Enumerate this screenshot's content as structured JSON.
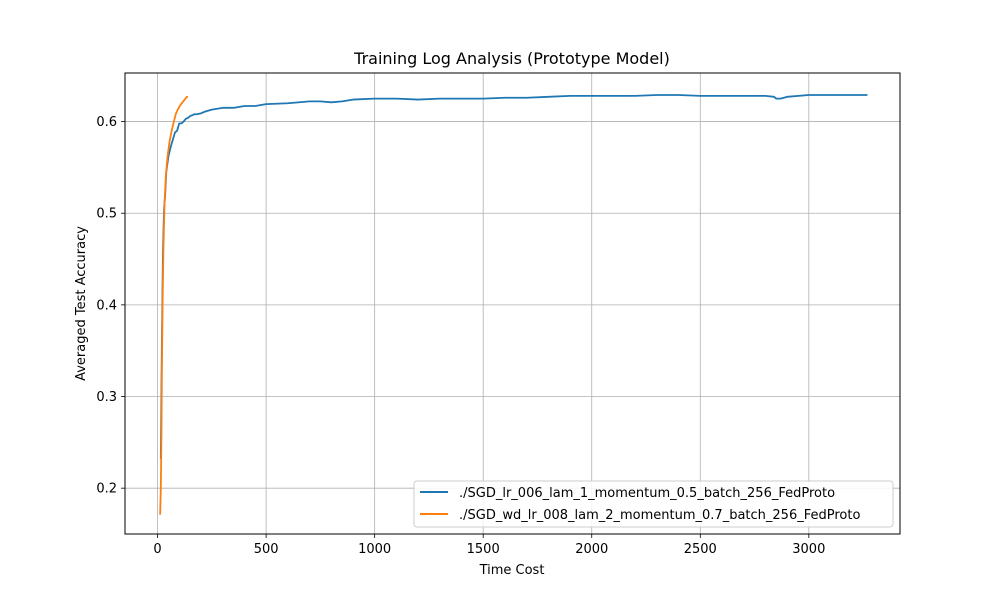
{
  "chart_data": {
    "type": "line",
    "title": "Training Log Analysis (Prototype Model)",
    "xlabel": "Time Cost",
    "ylabel": "Averaged Test Accuracy",
    "xlim": [
      -150,
      3420
    ],
    "ylim": [
      0.15,
      0.653
    ],
    "xticks": [
      0,
      500,
      1000,
      1500,
      2000,
      2500,
      3000
    ],
    "yticks": [
      0.2,
      0.3,
      0.4,
      0.5,
      0.6
    ],
    "xtick_labels": [
      "0",
      "500",
      "1000",
      "1500",
      "2000",
      "2500",
      "3000"
    ],
    "ytick_labels": [
      "0.2",
      "0.3",
      "0.4",
      "0.5",
      "0.6"
    ],
    "grid": true,
    "legend_position": "lower-right",
    "series": [
      {
        "name": "./SGD_lr_006_lam_1_momentum_0.5_batch_256_FedProto",
        "color": "#1f77b4",
        "x": [
          15,
          20,
          25,
          30,
          35,
          40,
          50,
          60,
          70,
          80,
          90,
          100,
          110,
          120,
          130,
          140,
          150,
          160,
          170,
          180,
          200,
          220,
          250,
          300,
          350,
          400,
          450,
          500,
          600,
          700,
          750,
          800,
          850,
          900,
          1000,
          1100,
          1200,
          1300,
          1400,
          1500,
          1600,
          1700,
          1800,
          1900,
          2000,
          2100,
          2200,
          2300,
          2400,
          2500,
          2600,
          2700,
          2800,
          2840,
          2850,
          2870,
          2900,
          3000,
          3100,
          3200,
          3270
        ],
        "y": [
          0.232,
          0.36,
          0.46,
          0.505,
          0.52,
          0.545,
          0.562,
          0.572,
          0.58,
          0.588,
          0.59,
          0.598,
          0.598,
          0.6,
          0.603,
          0.604,
          0.606,
          0.607,
          0.608,
          0.608,
          0.609,
          0.611,
          0.613,
          0.615,
          0.615,
          0.617,
          0.617,
          0.619,
          0.62,
          0.622,
          0.622,
          0.621,
          0.622,
          0.624,
          0.625,
          0.625,
          0.624,
          0.625,
          0.625,
          0.625,
          0.626,
          0.626,
          0.627,
          0.628,
          0.628,
          0.628,
          0.628,
          0.629,
          0.629,
          0.628,
          0.628,
          0.628,
          0.628,
          0.627,
          0.625,
          0.625,
          0.627,
          0.629,
          0.629,
          0.629,
          0.629
        ]
      },
      {
        "name": "./SGD_wd_lr_008_lam_2_momentum_0.7_batch_256_FedProto",
        "color": "#ff7f0e",
        "x": [
          8,
          12,
          15,
          18,
          20,
          23,
          27,
          32,
          38,
          45,
          55,
          65,
          75,
          85,
          95,
          105,
          115,
          125,
          135,
          140
        ],
        "y": [
          0.172,
          0.172,
          0.2,
          0.26,
          0.33,
          0.4,
          0.46,
          0.51,
          0.54,
          0.56,
          0.578,
          0.59,
          0.6,
          0.609,
          0.614,
          0.618,
          0.621,
          0.624,
          0.627,
          0.627
        ]
      }
    ]
  }
}
